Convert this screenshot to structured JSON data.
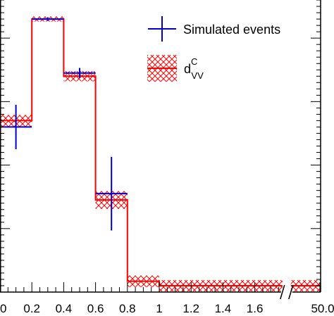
{
  "chart_data": {
    "type": "bar",
    "title": "",
    "xlabel": "",
    "ylabel": "",
    "x_bins": [
      [
        0.0,
        0.2
      ],
      [
        0.2,
        0.4
      ],
      [
        0.4,
        0.6
      ],
      [
        0.6,
        0.8
      ],
      [
        0.8,
        1.0
      ],
      [
        1.0,
        1.8
      ],
      [
        1.8,
        50.0
      ]
    ],
    "x_tick_labels": [
      "0",
      "0.2",
      "0.4",
      "0.6",
      "0.8",
      "1",
      "1.2",
      "1.4",
      "1.6",
      "50.0"
    ],
    "x_tick_values": [
      0.0,
      0.2,
      0.4,
      0.6,
      0.8,
      1.0,
      1.2,
      1.4,
      1.6,
      50.0
    ],
    "axis_break": [
      1.8,
      50.0
    ],
    "y_axis_note": "y tick labels not visible (cropped)",
    "ylim": [
      0,
      4.6
    ],
    "series": [
      {
        "name": "Simulated events",
        "color": "#0000cc",
        "style": "points-with-errors",
        "points": [
          {
            "x": 0.1,
            "y": 2.6,
            "err": 0.35
          },
          {
            "x": 0.3,
            "y": 4.3,
            "err": 0.03
          },
          {
            "x": 0.5,
            "y": 3.45,
            "err": 0.08
          },
          {
            "x": 0.7,
            "y": 1.55,
            "err": 0.58
          }
        ]
      },
      {
        "name": "d_VV^C",
        "color": "#ff0000",
        "style": "step-with-hatched-band",
        "values": [
          2.7,
          4.3,
          3.4,
          1.45,
          0.17,
          0.1,
          0.1
        ],
        "band_errors": [
          0.09,
          0.04,
          0.08,
          0.14,
          0.09,
          0.09,
          0.09
        ]
      }
    ],
    "legend": {
      "placement": "top-right",
      "entries": [
        {
          "label": "Simulated events",
          "icon": "cross-marker"
        },
        {
          "label_main": "d",
          "label_sup": "C",
          "label_sub": "VV",
          "icon": "hatched-band-line"
        }
      ]
    }
  }
}
